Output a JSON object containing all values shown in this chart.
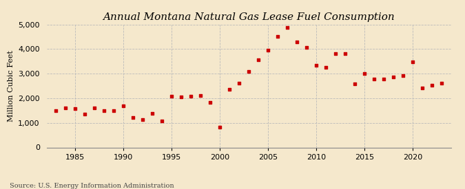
{
  "title": "Annual Montana Natural Gas Lease Fuel Consumption",
  "ylabel": "Million Cubic Feet",
  "source": "Source: U.S. Energy Information Administration",
  "background_color": "#f5e8cc",
  "plot_bg_color": "#f5e8cc",
  "marker_color": "#cc0000",
  "years": [
    1983,
    1984,
    1985,
    1986,
    1987,
    1988,
    1989,
    1990,
    1991,
    1992,
    1993,
    1994,
    1995,
    1996,
    1997,
    1998,
    1999,
    2000,
    2001,
    2002,
    2003,
    2004,
    2005,
    2006,
    2007,
    2008,
    2009,
    2010,
    2011,
    2012,
    2013,
    2014,
    2015,
    2016,
    2017,
    2018,
    2019,
    2020,
    2021,
    2022,
    2023
  ],
  "values": [
    1500,
    1620,
    1590,
    1370,
    1620,
    1510,
    1500,
    1700,
    1220,
    1130,
    1390,
    1080,
    2080,
    2050,
    2090,
    2120,
    1820,
    820,
    2370,
    2620,
    3100,
    3560,
    3960,
    4530,
    4870,
    4300,
    4080,
    3340,
    3260,
    3830,
    3830,
    2600,
    3020,
    2780,
    2770,
    2870,
    2930,
    3490,
    2420,
    2530,
    2620
  ],
  "xlim": [
    1982,
    2024
  ],
  "ylim": [
    0,
    5000
  ],
  "yticks": [
    0,
    1000,
    2000,
    3000,
    4000,
    5000
  ],
  "xticks": [
    1985,
    1990,
    1995,
    2000,
    2005,
    2010,
    2015,
    2020
  ],
  "grid_color": "#bbbbbb",
  "title_fontsize": 11,
  "label_fontsize": 8,
  "tick_fontsize": 8,
  "source_fontsize": 7
}
